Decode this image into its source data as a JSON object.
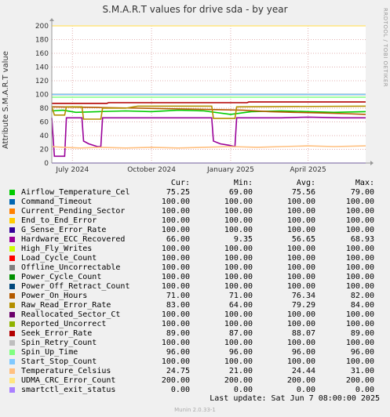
{
  "window": {
    "title": "S.M.A.R.T values for drive sda - by year",
    "side_text": "RRDTOOL / TOBI OETIKER",
    "footer": "Munin 2.0.33-1",
    "last_update": "Last update:  Sat Jun  7 08:00:00 2025"
  },
  "legend_headers": {
    "cur": "Cur:",
    "min": "Min:",
    "avg": "Avg:",
    "max": "Max:"
  },
  "chart_data": {
    "type": "line",
    "title": "S.M.A.R.T values for drive sda - by year",
    "ylabel": "Attribute S.M.A.R.T value",
    "xlabel": "",
    "ylim": [
      0,
      200
    ],
    "yticks": [
      0,
      20,
      40,
      60,
      80,
      100,
      120,
      140,
      160,
      180,
      200
    ],
    "xlim": [
      "2024-06-07",
      "2025-06-07"
    ],
    "xticks": [
      {
        "label": "July 2024",
        "date": "2024-07-01"
      },
      {
        "label": "October 2024",
        "date": "2024-10-01"
      },
      {
        "label": "January 2025",
        "date": "2025-01-01"
      },
      {
        "label": "April 2025",
        "date": "2025-04-01"
      }
    ],
    "grid": true,
    "series": [
      {
        "name": "Airflow_Temperature_Cel",
        "color": "#00cc00",
        "cur": "75.25",
        "min": "69.00",
        "avg": "75.56",
        "max": "79.00",
        "points": [
          [
            "2024-06-07",
            76
          ],
          [
            "2024-06-20",
            77
          ],
          [
            "2024-07-05",
            74
          ],
          [
            "2024-08-01",
            75
          ],
          [
            "2024-09-01",
            76
          ],
          [
            "2024-10-01",
            75
          ],
          [
            "2024-11-01",
            77
          ],
          [
            "2024-12-01",
            76
          ],
          [
            "2025-01-01",
            71
          ],
          [
            "2025-01-25",
            75
          ],
          [
            "2025-03-01",
            76
          ],
          [
            "2025-04-01",
            75
          ],
          [
            "2025-05-01",
            74
          ],
          [
            "2025-06-07",
            75
          ]
        ]
      },
      {
        "name": "Command_Timeout",
        "color": "#0066b3",
        "cur": "100.00",
        "min": "100.00",
        "avg": "100.00",
        "max": "100.00",
        "points": [
          [
            "2024-06-07",
            100
          ],
          [
            "2025-06-07",
            100
          ]
        ]
      },
      {
        "name": "Current_Pending_Sector",
        "color": "#ff8000",
        "cur": "100.00",
        "min": "100.00",
        "avg": "100.00",
        "max": "100.00",
        "points": [
          [
            "2024-06-07",
            100
          ],
          [
            "2025-06-07",
            100
          ]
        ]
      },
      {
        "name": "End_to_End_Error",
        "color": "#ffcc00",
        "cur": "100.00",
        "min": "100.00",
        "avg": "100.00",
        "max": "100.00",
        "points": [
          [
            "2024-06-07",
            100
          ],
          [
            "2025-06-07",
            100
          ]
        ]
      },
      {
        "name": "G_Sense_Error_Rate",
        "color": "#330099",
        "cur": "100.00",
        "min": "100.00",
        "avg": "100.00",
        "max": "100.00",
        "points": [
          [
            "2024-06-07",
            100
          ],
          [
            "2025-06-07",
            100
          ]
        ]
      },
      {
        "name": "Hardware_ECC_Recovered",
        "color": "#990099",
        "cur": "66.00",
        "min": "9.35",
        "avg": "56.65",
        "max": "68.93",
        "points": [
          [
            "2024-06-07",
            66
          ],
          [
            "2024-06-10",
            10
          ],
          [
            "2024-06-22",
            10
          ],
          [
            "2024-06-24",
            66
          ],
          [
            "2024-07-12",
            66
          ],
          [
            "2024-07-14",
            32
          ],
          [
            "2024-07-20",
            28
          ],
          [
            "2024-07-30",
            24
          ],
          [
            "2024-08-03",
            24
          ],
          [
            "2024-08-05",
            66
          ],
          [
            "2024-12-10",
            66
          ],
          [
            "2024-12-12",
            32
          ],
          [
            "2024-12-20",
            28
          ],
          [
            "2024-12-30",
            26
          ],
          [
            "2025-01-06",
            24
          ],
          [
            "2025-01-08",
            66
          ],
          [
            "2025-03-01",
            66
          ],
          [
            "2025-04-01",
            67
          ],
          [
            "2025-05-10",
            66
          ],
          [
            "2025-06-07",
            66
          ]
        ]
      },
      {
        "name": "High_Fly_Writes",
        "color": "#ccff00",
        "cur": "100.00",
        "min": "100.00",
        "avg": "100.00",
        "max": "100.00",
        "points": [
          [
            "2024-06-07",
            100
          ],
          [
            "2025-06-07",
            100
          ]
        ]
      },
      {
        "name": "Load_Cycle_Count",
        "color": "#ff0000",
        "cur": "100.00",
        "min": "100.00",
        "avg": "100.00",
        "max": "100.00",
        "points": [
          [
            "2024-06-07",
            100
          ],
          [
            "2025-06-07",
            100
          ]
        ]
      },
      {
        "name": "Offline_Uncorrectable",
        "color": "#808080",
        "cur": "100.00",
        "min": "100.00",
        "avg": "100.00",
        "max": "100.00",
        "points": [
          [
            "2024-06-07",
            100
          ],
          [
            "2025-06-07",
            100
          ]
        ]
      },
      {
        "name": "Power_Cycle_Count",
        "color": "#008f00",
        "cur": "100.00",
        "min": "100.00",
        "avg": "100.00",
        "max": "100.00",
        "points": [
          [
            "2024-06-07",
            100
          ],
          [
            "2025-06-07",
            100
          ]
        ]
      },
      {
        "name": "Power_Off_Retract_Count",
        "color": "#00487d",
        "cur": "100.00",
        "min": "100.00",
        "avg": "100.00",
        "max": "100.00",
        "points": [
          [
            "2024-06-07",
            100
          ],
          [
            "2025-06-07",
            100
          ]
        ]
      },
      {
        "name": "Power_On_Hours",
        "color": "#b35a00",
        "cur": "71.00",
        "min": "71.00",
        "avg": "76.34",
        "max": "82.00",
        "points": [
          [
            "2024-06-07",
            82
          ],
          [
            "2024-08-01",
            81
          ],
          [
            "2024-09-15",
            80
          ],
          [
            "2024-11-01",
            79
          ],
          [
            "2024-12-15",
            78
          ],
          [
            "2025-01-15",
            77
          ],
          [
            "2025-02-15",
            75
          ],
          [
            "2025-03-15",
            74
          ],
          [
            "2025-04-15",
            73
          ],
          [
            "2025-05-15",
            72
          ],
          [
            "2025-06-07",
            71
          ]
        ]
      },
      {
        "name": "Raw_Read_Error_Rate",
        "color": "#b38f00",
        "cur": "83.00",
        "min": "64.00",
        "avg": "79.29",
        "max": "84.00",
        "points": [
          [
            "2024-06-07",
            83
          ],
          [
            "2024-06-10",
            70
          ],
          [
            "2024-06-22",
            70
          ],
          [
            "2024-06-24",
            82
          ],
          [
            "2024-07-12",
            82
          ],
          [
            "2024-07-14",
            64
          ],
          [
            "2024-08-03",
            64
          ],
          [
            "2024-08-05",
            80
          ],
          [
            "2024-09-01",
            80
          ],
          [
            "2024-09-15",
            83
          ],
          [
            "2024-12-10",
            83
          ],
          [
            "2024-12-12",
            65
          ],
          [
            "2025-01-06",
            65
          ],
          [
            "2025-01-08",
            82
          ],
          [
            "2025-06-07",
            83
          ]
        ]
      },
      {
        "name": "Reallocated_Sector_Ct",
        "color": "#6b006b",
        "cur": "100.00",
        "min": "100.00",
        "avg": "100.00",
        "max": "100.00",
        "points": [
          [
            "2024-06-07",
            100
          ],
          [
            "2025-06-07",
            100
          ]
        ]
      },
      {
        "name": "Reported_Uncorrect",
        "color": "#8fb300",
        "cur": "100.00",
        "min": "100.00",
        "avg": "100.00",
        "max": "100.00",
        "points": [
          [
            "2024-06-07",
            100
          ],
          [
            "2025-06-07",
            100
          ]
        ]
      },
      {
        "name": "Seek_Error_Rate",
        "color": "#b30000",
        "cur": "89.00",
        "min": "87.00",
        "avg": "88.07",
        "max": "89.00",
        "points": [
          [
            "2024-06-07",
            87
          ],
          [
            "2024-08-10",
            87
          ],
          [
            "2024-08-12",
            88
          ],
          [
            "2025-01-20",
            88
          ],
          [
            "2025-01-22",
            89
          ],
          [
            "2025-06-07",
            89
          ]
        ]
      },
      {
        "name": "Spin_Retry_Count",
        "color": "#bebebe",
        "cur": "100.00",
        "min": "100.00",
        "avg": "100.00",
        "max": "100.00",
        "points": [
          [
            "2024-06-07",
            100
          ],
          [
            "2025-06-07",
            100
          ]
        ]
      },
      {
        "name": "Spin_Up_Time",
        "color": "#80ff80",
        "cur": "96.00",
        "min": "96.00",
        "avg": "96.00",
        "max": "96.00",
        "points": [
          [
            "2024-06-07",
            96
          ],
          [
            "2025-06-07",
            96
          ]
        ]
      },
      {
        "name": "Start_Stop_Count",
        "color": "#80c9ff",
        "cur": "100.00",
        "min": "100.00",
        "avg": "100.00",
        "max": "100.00",
        "points": [
          [
            "2024-06-07",
            100
          ],
          [
            "2025-06-07",
            100
          ]
        ]
      },
      {
        "name": "Temperature_Celsius",
        "color": "#ffc080",
        "cur": "24.75",
        "min": "21.00",
        "avg": "24.44",
        "max": "31.00",
        "points": [
          [
            "2024-06-07",
            24
          ],
          [
            "2024-06-20",
            23
          ],
          [
            "2024-07-10",
            22
          ],
          [
            "2024-08-01",
            23
          ],
          [
            "2024-09-01",
            22
          ],
          [
            "2024-10-01",
            23
          ],
          [
            "2024-11-01",
            22
          ],
          [
            "2024-12-01",
            23
          ],
          [
            "2025-01-01",
            24
          ],
          [
            "2025-02-01",
            23
          ],
          [
            "2025-03-01",
            24
          ],
          [
            "2025-04-01",
            25
          ],
          [
            "2025-05-01",
            24
          ],
          [
            "2025-06-07",
            25
          ]
        ]
      },
      {
        "name": "UDMA_CRC_Error_Count",
        "color": "#ffe680",
        "cur": "200.00",
        "min": "200.00",
        "avg": "200.00",
        "max": "200.00",
        "points": [
          [
            "2024-06-07",
            200
          ],
          [
            "2025-06-07",
            200
          ]
        ]
      },
      {
        "name": "smartctl_exit_status",
        "color": "#aa80ff",
        "cur": "0.00",
        "min": "0.00",
        "avg": "0.00",
        "max": "0.00",
        "points": [
          [
            "2024-06-07",
            0
          ],
          [
            "2025-06-07",
            0
          ]
        ]
      }
    ]
  }
}
